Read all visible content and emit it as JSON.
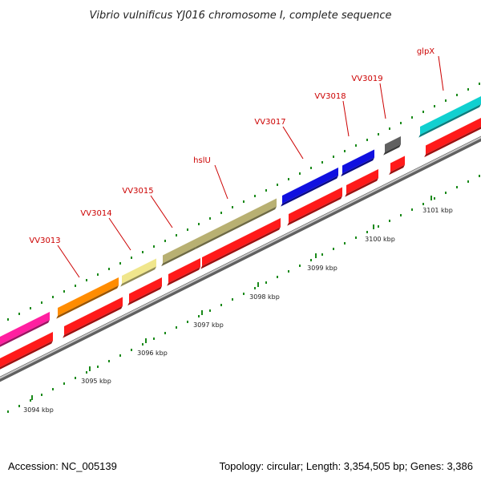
{
  "title": "Vibrio vulnificus YJ016 chromosome I, complete sequence",
  "footer": {
    "accession": "Accession: NC_005139",
    "summary": "Topology: circular; Length: 3,354,505 bp; Genes: 3,386"
  },
  "colors": {
    "backbone": "#909090",
    "cds": "#ff1a1a",
    "label": "#cc0000",
    "tick": "#1a8a1a"
  },
  "genes": [
    {
      "name": "",
      "color": "#ff1fa0"
    },
    {
      "name": "VV3013",
      "color": "#ff8c00"
    },
    {
      "name": "VV3014",
      "color": "#f0e68c"
    },
    {
      "name": "VV3015",
      "color": "#b8b072"
    },
    {
      "name": "hslU",
      "color": "#b8b072"
    },
    {
      "name": "VV3017",
      "color": "#1010e0"
    },
    {
      "name": "VV3018",
      "color": "#1010e0"
    },
    {
      "name": "VV3019",
      "color": "#606060"
    },
    {
      "name": "glpX",
      "color": "#10d0d0"
    }
  ],
  "ticks": [
    "3094 kbp",
    "3095 kbp",
    "3096 kbp",
    "3097 kbp",
    "3098 kbp",
    "3099 kbp",
    "3100 kbp",
    "3101 kbp"
  ]
}
